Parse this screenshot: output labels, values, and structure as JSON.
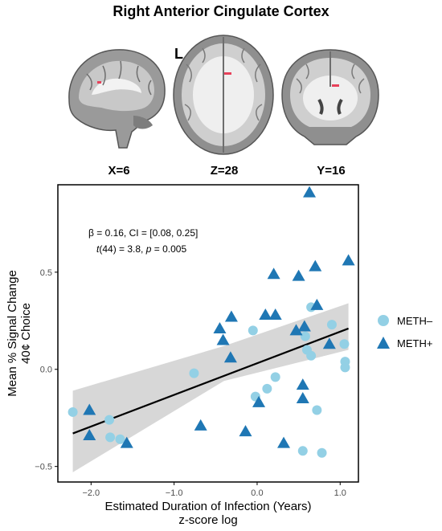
{
  "figure_title": "Right Anterior Cingulate Cortex",
  "orientation_label": "L",
  "slices": [
    {
      "label": "X=6",
      "view": "sagittal"
    },
    {
      "label": "Z=28",
      "view": "axial"
    },
    {
      "label": "Y=16",
      "view": "coronal"
    }
  ],
  "colors": {
    "meth_minus": "#93d0e5",
    "meth_plus": "#1f77b4",
    "fit_line": "#000000",
    "ci_band": "#d3d3d3",
    "roi": "#e8415a"
  },
  "stats": {
    "line1": "β = 0.16, CI = [0.08, 0.25]",
    "line2_t": "t",
    "line2_mid": "(44) = 3.8, ",
    "line2_p": "p",
    "line2_end": " = 0.005"
  },
  "legend": {
    "entries": [
      {
        "label": "METH–",
        "shape": "circle"
      },
      {
        "label": "METH+",
        "shape": "triangle"
      }
    ]
  },
  "chart_data": {
    "type": "scatter",
    "xlabel": "Estimated Duration of Infection (Years)",
    "xlabel2": "z-score log",
    "ylabel": "Mean % Signal Change",
    "ylabel2": "40¢ Choice",
    "xlim": [
      -2.4,
      1.22
    ],
    "ylim": [
      -0.58,
      0.95
    ],
    "xticks": [
      -2.0,
      -1.0,
      0.0,
      1.0
    ],
    "xtick_labels": [
      "−2.0",
      "−1.0",
      "0.0",
      "1.0"
    ],
    "yticks": [
      -0.5,
      0.0,
      0.5
    ],
    "ytick_labels": [
      "−0.5",
      "0.0",
      "0.5"
    ],
    "grid": false,
    "fit": {
      "x0": -2.22,
      "y0": -0.33,
      "x1": 1.1,
      "y1": 0.21
    },
    "ci_band": {
      "lower": [
        -0.53,
        -0.06,
        0.1
      ],
      "upper": [
        -0.11,
        0.12,
        0.34
      ],
      "x": [
        -2.22,
        -0.4,
        1.1
      ]
    },
    "series": [
      {
        "name": "METH–",
        "marker": "circle",
        "points": [
          [
            -2.22,
            -0.22
          ],
          [
            -1.78,
            -0.26
          ],
          [
            -1.77,
            -0.35
          ],
          [
            -1.65,
            -0.36
          ],
          [
            -0.76,
            -0.02
          ],
          [
            -0.05,
            0.2
          ],
          [
            -0.02,
            -0.14
          ],
          [
            0.12,
            -0.1
          ],
          [
            0.22,
            -0.04
          ],
          [
            0.55,
            -0.42
          ],
          [
            0.58,
            0.17
          ],
          [
            0.6,
            0.1
          ],
          [
            0.65,
            0.07
          ],
          [
            0.65,
            0.32
          ],
          [
            0.72,
            -0.21
          ],
          [
            0.78,
            -0.43
          ],
          [
            0.9,
            0.23
          ],
          [
            1.05,
            0.13
          ],
          [
            1.06,
            0.04
          ],
          [
            1.06,
            0.01
          ]
        ]
      },
      {
        "name": "METH+",
        "marker": "triangle",
        "points": [
          [
            -2.02,
            -0.21
          ],
          [
            -2.02,
            -0.34
          ],
          [
            -1.57,
            -0.38
          ],
          [
            -0.68,
            -0.29
          ],
          [
            -0.45,
            0.21
          ],
          [
            -0.41,
            0.15
          ],
          [
            -0.32,
            0.06
          ],
          [
            -0.31,
            0.27
          ],
          [
            -0.14,
            -0.32
          ],
          [
            0.02,
            -0.17
          ],
          [
            0.1,
            0.28
          ],
          [
            0.22,
            0.28
          ],
          [
            0.2,
            0.49
          ],
          [
            0.32,
            -0.38
          ],
          [
            0.47,
            0.2
          ],
          [
            0.5,
            0.48
          ],
          [
            0.55,
            -0.08
          ],
          [
            0.55,
            -0.15
          ],
          [
            0.57,
            0.22
          ],
          [
            0.63,
            0.91
          ],
          [
            0.7,
            0.53
          ],
          [
            0.72,
            0.33
          ],
          [
            0.87,
            0.13
          ],
          [
            1.1,
            0.56
          ]
        ]
      }
    ]
  }
}
